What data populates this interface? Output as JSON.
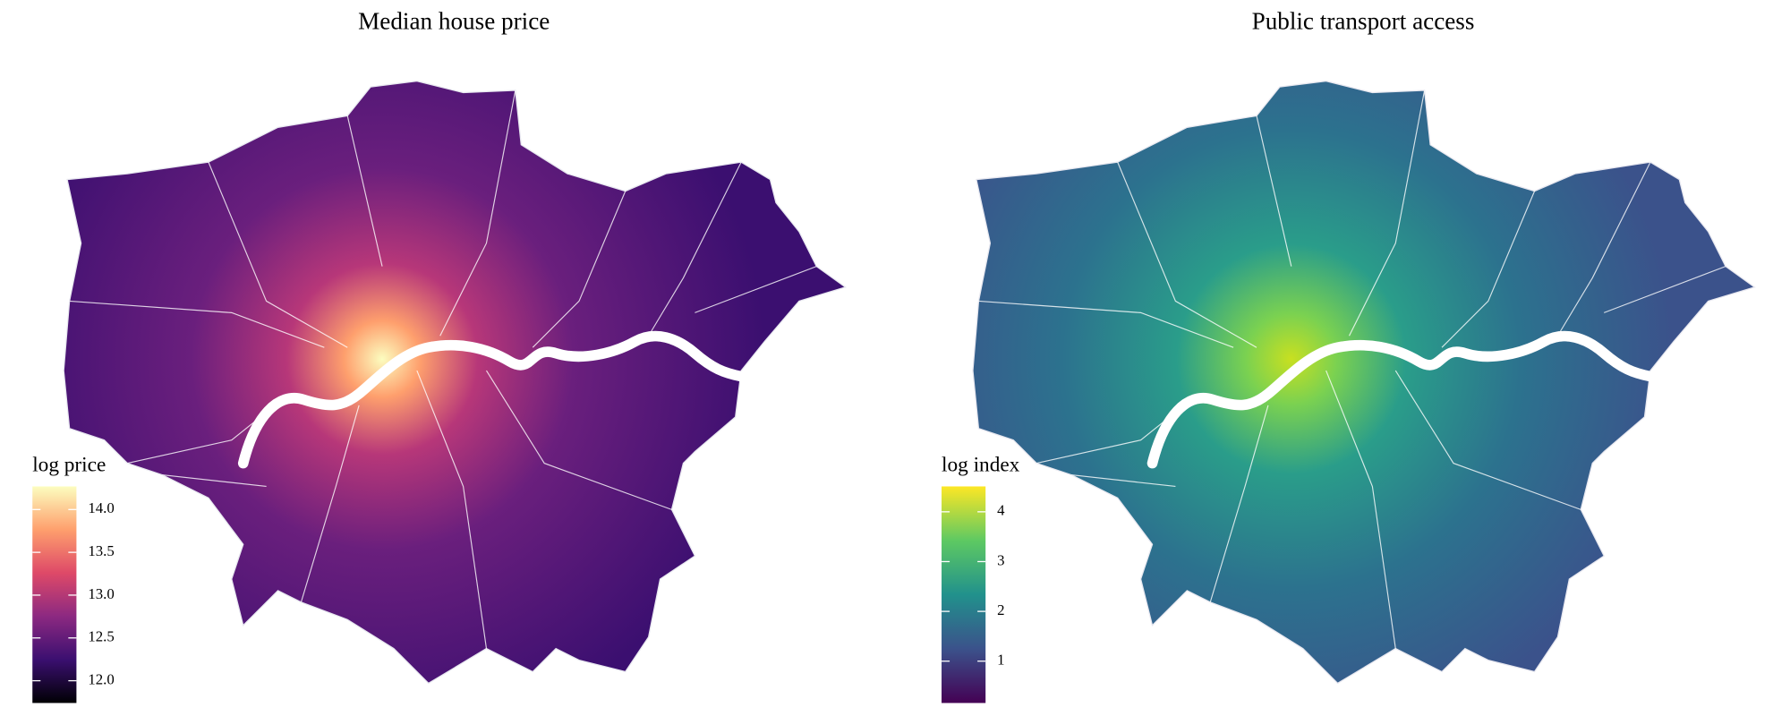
{
  "maps": [
    {
      "title": "Median house price",
      "legend": {
        "title": "log price",
        "range": [
          11.74,
          14.27
        ],
        "ticks": [
          {
            "value": 12,
            "label": "12.0"
          },
          {
            "value": 12.5,
            "label": "12.5"
          },
          {
            "value": 13,
            "label": "13.0"
          },
          {
            "value": 13.5,
            "label": "13.5"
          },
          {
            "value": 14,
            "label": "14.0"
          }
        ],
        "colors": [
          "#000004",
          "#3b0f70",
          "#8c2981",
          "#de4968",
          "#fe9f6d",
          "#fcfdbf"
        ]
      }
    },
    {
      "title": "Public transport access",
      "legend": {
        "title": "log index",
        "range": [
          0.16,
          4.51
        ],
        "ticks": [
          1,
          2,
          3,
          4
        ],
        "colors": [
          "#440154",
          "#3b528b",
          "#21918c",
          "#5ec962",
          "#fde725"
        ]
      }
    }
  ]
}
